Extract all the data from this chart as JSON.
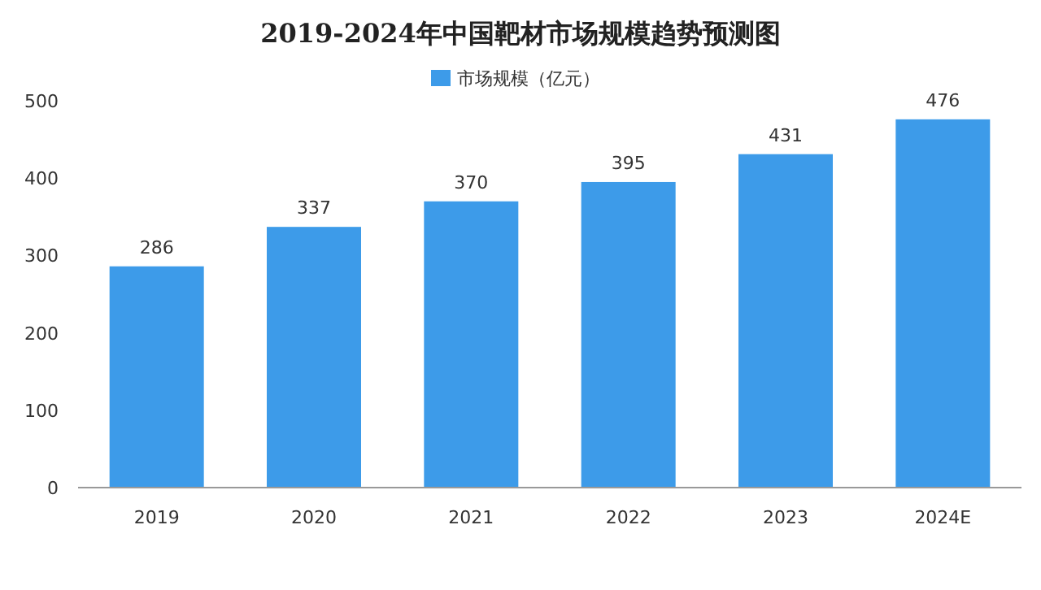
{
  "chart_data": {
    "type": "bar",
    "title": "2019-2024年中国靶材市场规模趋势预测图",
    "categories": [
      "2019",
      "2020",
      "2021",
      "2022",
      "2023",
      "2024E"
    ],
    "series": [
      {
        "name": "市场规模（亿元）",
        "color": "#3d9be9",
        "values": [
          286,
          337,
          370,
          395,
          431,
          476
        ]
      }
    ],
    "ylim": [
      0,
      500
    ],
    "yticks": [
      0,
      100,
      200,
      300,
      400,
      500
    ],
    "data_labels": true,
    "legend": "top"
  }
}
